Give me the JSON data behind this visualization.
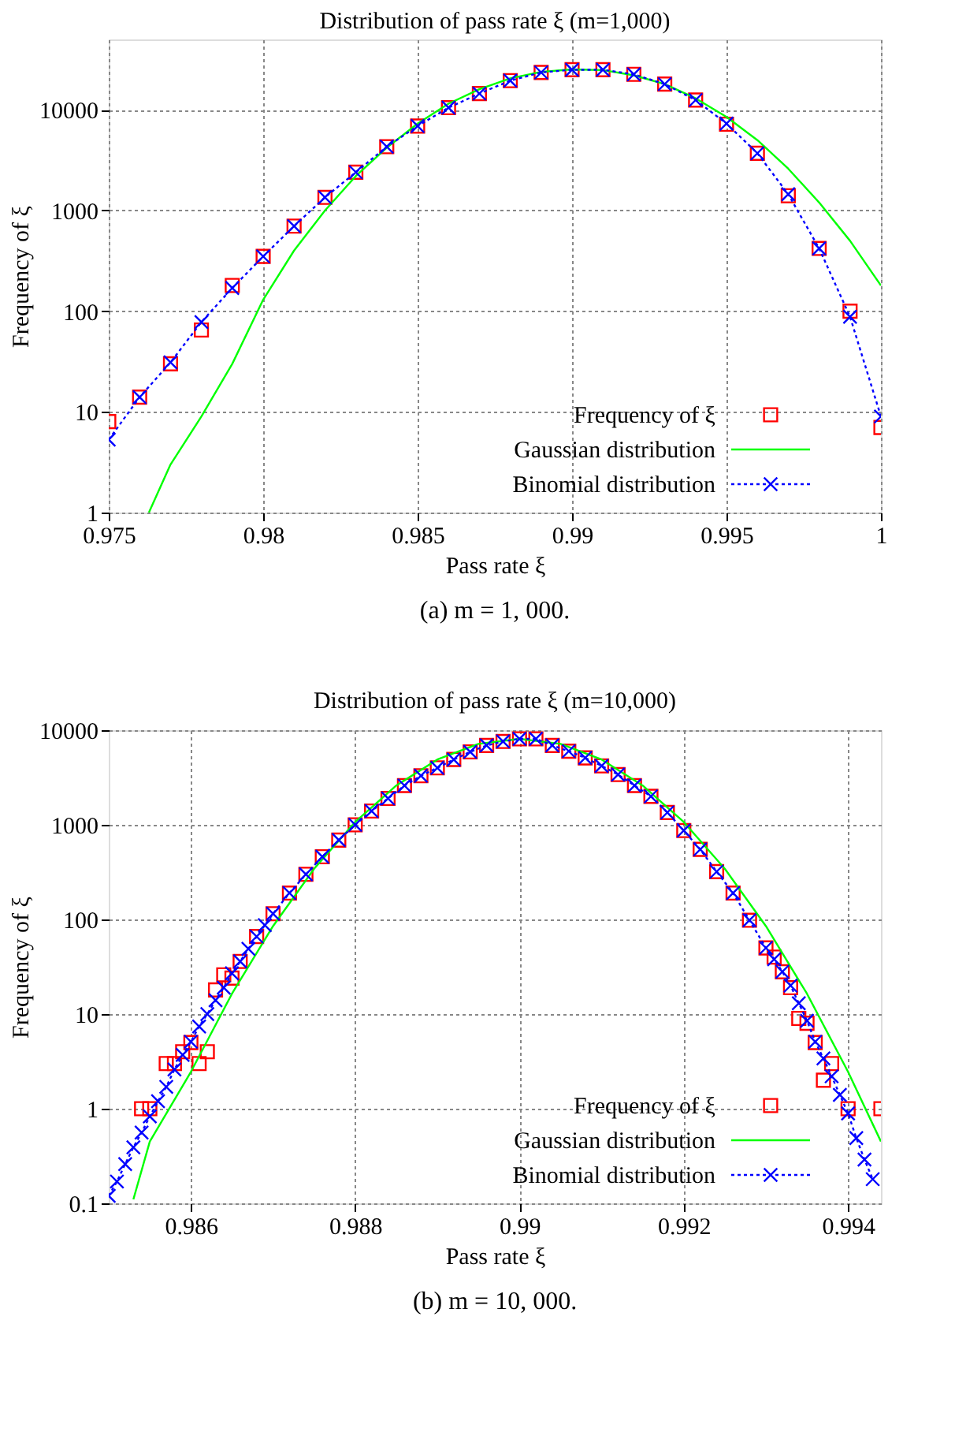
{
  "chart_data": [
    {
      "type": "scatter",
      "title": "Distribution of pass rate ξ  (m=1,000)",
      "xlabel": "Pass rate ξ",
      "ylabel": "Frequency of ξ",
      "annotations": [
        "(a) m = 1, 000."
      ],
      "log": "y",
      "grid": true,
      "legend": "bottom right",
      "xlim": [
        0.975,
        1
      ],
      "xticks": [
        0.975,
        0.98,
        0.985,
        0.99,
        0.995,
        1
      ],
      "ylim": [
        1,
        50000
      ],
      "yticks": [
        1,
        10,
        100,
        1000,
        10000
      ],
      "x": [
        0.975,
        0.976,
        0.977,
        0.978,
        0.979,
        0.98,
        0.981,
        0.982,
        0.983,
        0.984,
        0.985,
        0.986,
        0.987,
        0.988,
        0.989,
        0.99,
        0.991,
        0.992,
        0.993,
        0.994,
        0.995,
        0.996,
        0.997,
        0.998,
        0.999,
        1
      ],
      "series": [
        {
          "name": "Frequency of ξ",
          "marker": "square",
          "color": "#ff0000",
          "values": [
            8,
            14,
            30,
            65,
            180,
            350,
            700,
            1350,
            2400,
            4300,
            6900,
            10500,
            14500,
            19500,
            23500,
            25000,
            25000,
            22500,
            18000,
            12500,
            7200,
            3700,
            1400,
            420,
            100,
            7
          ]
        },
        {
          "name": "Gaussian distribution",
          "type": "line",
          "marker": "none",
          "line_style": "solid",
          "color": "#00ff00",
          "x": [
            0.9763,
            0.977,
            0.978,
            0.979,
            0.98,
            0.981,
            0.982,
            0.983,
            0.984,
            0.985,
            0.986,
            0.987,
            0.988,
            0.989,
            0.99,
            0.991,
            0.992,
            0.993,
            0.994,
            0.995,
            0.996,
            0.997,
            0.998,
            0.999,
            1
          ],
          "values": [
            1,
            3,
            9,
            30,
            130,
            400,
            1000,
            2200,
            4200,
            7300,
            11500,
            16000,
            20500,
            23800,
            25200,
            24800,
            22000,
            18000,
            13000,
            8500,
            5000,
            2600,
            1200,
            500,
            180
          ]
        },
        {
          "name": "Binomial distribution",
          "type": "line",
          "marker": "cross",
          "line_style": "dotted",
          "color": "#0000ff",
          "values": [
            5.3,
            14,
            31,
            78,
            170,
            350,
            700,
            1350,
            2400,
            4300,
            6900,
            10500,
            14500,
            19500,
            23500,
            25000,
            25000,
            22500,
            18000,
            12500,
            7300,
            3700,
            1450,
            420,
            88,
            9
          ]
        }
      ]
    },
    {
      "type": "scatter",
      "title": "Distribution of pass rate ξ  (m=10,000)",
      "xlabel": "Pass rate ξ",
      "ylabel": "Frequency of ξ",
      "annotations": [
        "(b) m = 10, 000."
      ],
      "log": "y",
      "grid": true,
      "legend": "bottom right",
      "xlim": [
        0.985,
        0.9944
      ],
      "xticks": [
        0.986,
        0.988,
        0.99,
        0.992,
        0.994
      ],
      "ylim": [
        0.1,
        10000
      ],
      "yticks": [
        0.1,
        1,
        10,
        100,
        1000,
        10000
      ],
      "x": [
        0.985,
        0.9851,
        0.9852,
        0.9853,
        0.9854,
        0.9855,
        0.9856,
        0.9857,
        0.9858,
        0.9859,
        0.986,
        0.9861,
        0.9862,
        0.9863,
        0.9864,
        0.9865,
        0.9866,
        0.9867,
        0.9868,
        0.9869,
        0.987,
        0.9872,
        0.9874,
        0.9876,
        0.9878,
        0.988,
        0.9882,
        0.9884,
        0.9886,
        0.9888,
        0.989,
        0.9892,
        0.9894,
        0.9896,
        0.9898,
        0.99,
        0.9902,
        0.9904,
        0.9906,
        0.9908,
        0.991,
        0.9912,
        0.9914,
        0.9916,
        0.9918,
        0.992,
        0.9922,
        0.9924,
        0.9926,
        0.9928,
        0.993,
        0.9931,
        0.9932,
        0.9933,
        0.9934,
        0.9935,
        0.9936,
        0.9937,
        0.9938,
        0.9939,
        0.994,
        0.9941,
        0.9942,
        0.9943
      ],
      "series": [
        {
          "name": "Frequency of ξ",
          "marker": "square",
          "color": "#ff0000",
          "x": [
            0.9854,
            0.9855,
            0.9857,
            0.9858,
            0.9859,
            0.986,
            0.9861,
            0.9862,
            0.9863,
            0.9864,
            0.9865,
            0.9866,
            0.9868,
            0.987,
            0.9872,
            0.9874,
            0.9876,
            0.9878,
            0.988,
            0.9882,
            0.9884,
            0.9886,
            0.9888,
            0.989,
            0.9892,
            0.9894,
            0.9896,
            0.9898,
            0.99,
            0.9902,
            0.9904,
            0.9906,
            0.9908,
            0.991,
            0.9912,
            0.9914,
            0.9916,
            0.9918,
            0.992,
            0.9922,
            0.9924,
            0.9926,
            0.9928,
            0.993,
            0.9931,
            0.9932,
            0.9933,
            0.9934,
            0.9935,
            0.9936,
            0.9937,
            0.9938,
            0.994,
            0.9944
          ],
          "values": [
            1,
            1,
            3,
            3,
            4,
            5,
            3,
            4,
            18,
            26,
            24,
            36,
            66,
            115,
            190,
            300,
            460,
            690,
            1000,
            1400,
            1900,
            2600,
            3300,
            4000,
            4900,
            5900,
            6900,
            7600,
            8100,
            8100,
            6900,
            6000,
            5100,
            4200,
            3400,
            2600,
            2000,
            1350,
            870,
            550,
            320,
            190,
            98,
            50,
            40,
            28,
            19,
            9,
            8,
            5,
            2,
            3,
            1,
            1
          ]
        },
        {
          "name": "Gaussian distribution",
          "type": "line",
          "marker": "none",
          "line_style": "solid",
          "color": "#00ff00",
          "x": [
            0.9853,
            0.9855,
            0.986,
            0.9865,
            0.987,
            0.9875,
            0.988,
            0.9885,
            0.989,
            0.9895,
            0.99,
            0.9905,
            0.991,
            0.9915,
            0.992,
            0.9925,
            0.993,
            0.9935,
            0.994,
            0.9944
          ],
          "values": [
            0.11,
            0.45,
            2.45,
            16.4,
            85,
            343,
            1070,
            2600,
            4900,
            7160,
            8100,
            7160,
            4900,
            2600,
            1070,
            343,
            85,
            16.4,
            2.45,
            0.45
          ]
        },
        {
          "name": "Binomial distribution",
          "type": "line",
          "marker": "cross",
          "line_style": "dotted",
          "color": "#0000ff",
          "values": [
            0.12,
            0.17,
            0.26,
            0.39,
            0.56,
            0.83,
            1.2,
            1.7,
            2.6,
            3.7,
            5.1,
            7.4,
            10,
            14,
            19,
            27,
            36,
            49,
            66,
            87,
            115,
            190,
            300,
            460,
            690,
            1000,
            1400,
            1900,
            2600,
            3300,
            4000,
            4900,
            5900,
            6900,
            7600,
            8100,
            8100,
            6900,
            6000,
            5100,
            4200,
            3400,
            2600,
            2000,
            1350,
            870,
            550,
            320,
            190,
            98,
            50,
            38,
            28,
            20,
            13,
            8.5,
            5.1,
            3.4,
            2.2,
            1.4,
            0.89,
            0.49,
            0.29,
            0.18
          ]
        }
      ]
    }
  ]
}
